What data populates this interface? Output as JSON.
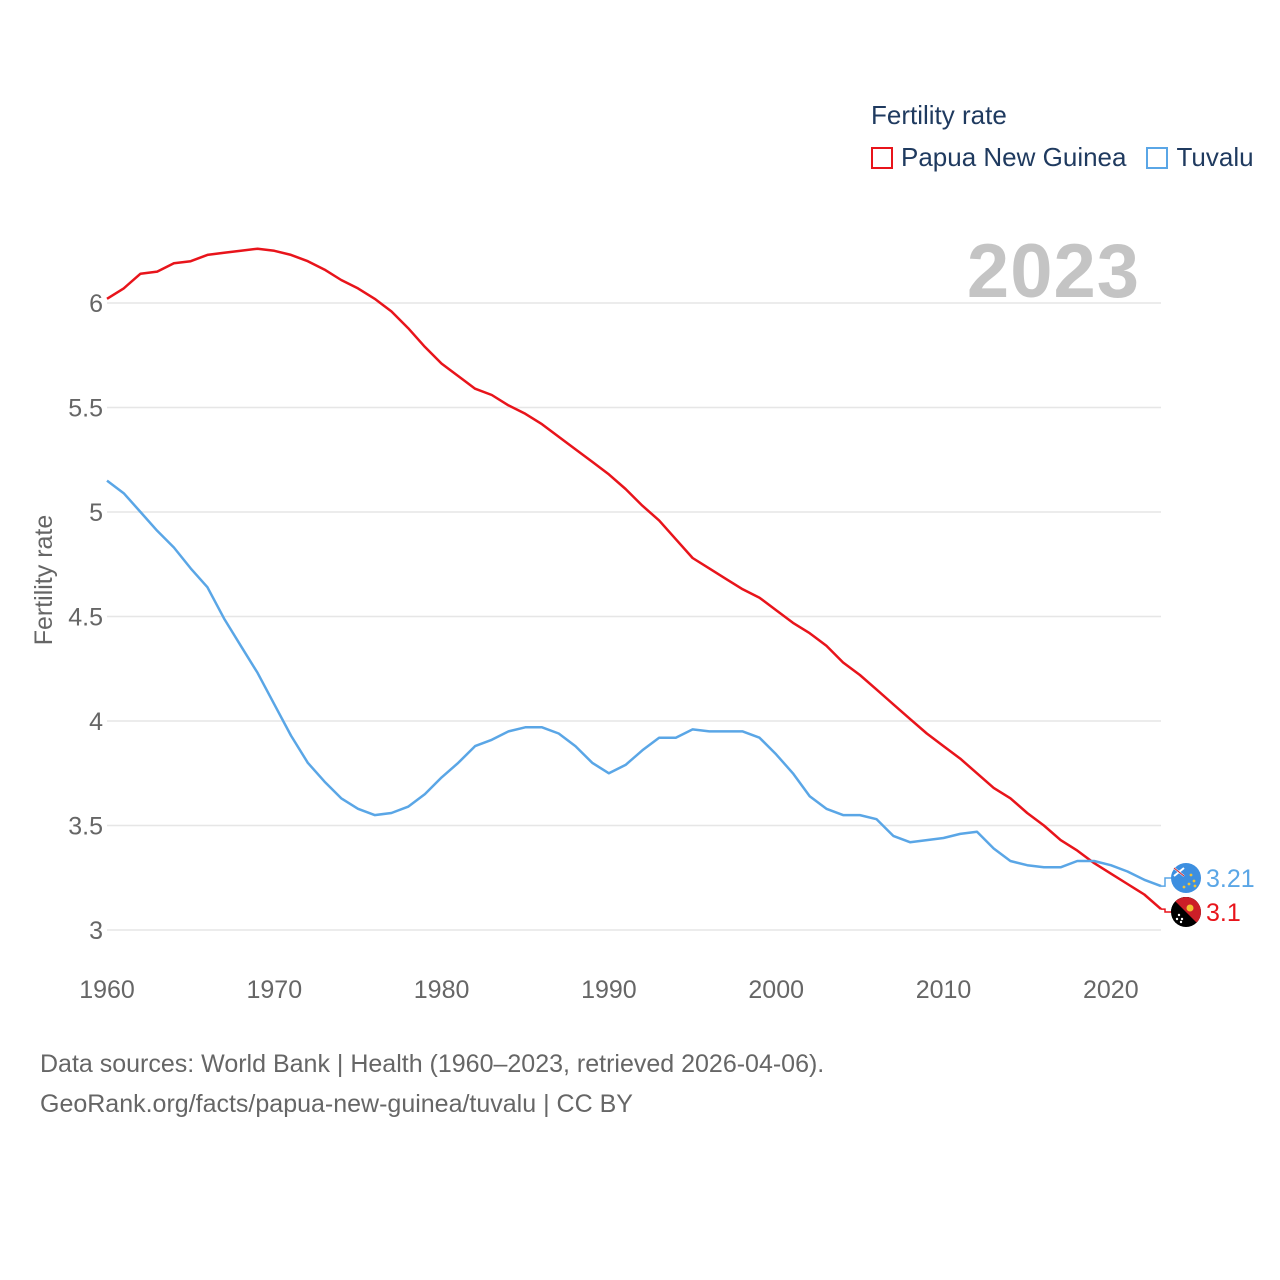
{
  "legend": {
    "title": "Fertility rate",
    "items": [
      {
        "name": "Papua New Guinea",
        "color": "#e8141b"
      },
      {
        "name": "Tuvalu",
        "color": "#5aa6e6"
      }
    ]
  },
  "year_label": "2023",
  "footer": {
    "line1": "Data sources: World Bank | Health (1960–2023, retrieved 2026-04-06).",
    "line2": "GeoRank.org/facts/papua-new-guinea/tuvalu | CC BY"
  },
  "chart_data": {
    "type": "line",
    "title": "Fertility rate",
    "xlabel": "",
    "ylabel": "Fertility rate",
    "xlim": [
      1960,
      2023
    ],
    "ylim": [
      3,
      6.2
    ],
    "x_ticks": [
      1960,
      1970,
      1980,
      1990,
      2000,
      2010,
      2020
    ],
    "y_ticks": [
      3,
      3.5,
      4,
      4.5,
      5,
      5.5,
      6
    ],
    "grid": true,
    "x": [
      1960,
      1961,
      1962,
      1963,
      1964,
      1965,
      1966,
      1967,
      1968,
      1969,
      1970,
      1971,
      1972,
      1973,
      1974,
      1975,
      1976,
      1977,
      1978,
      1979,
      1980,
      1981,
      1982,
      1983,
      1984,
      1985,
      1986,
      1987,
      1988,
      1989,
      1990,
      1991,
      1992,
      1993,
      1994,
      1995,
      1996,
      1997,
      1998,
      1999,
      2000,
      2001,
      2002,
      2003,
      2004,
      2005,
      2006,
      2007,
      2008,
      2009,
      2010,
      2011,
      2012,
      2013,
      2014,
      2015,
      2016,
      2017,
      2018,
      2019,
      2020,
      2021,
      2022,
      2023
    ],
    "series": [
      {
        "name": "Papua New Guinea",
        "color": "#e8141b",
        "end_label": "3.1",
        "values": [
          6.02,
          6.07,
          6.14,
          6.15,
          6.19,
          6.2,
          6.23,
          6.24,
          6.25,
          6.26,
          6.25,
          6.23,
          6.2,
          6.16,
          6.11,
          6.07,
          6.02,
          5.96,
          5.88,
          5.79,
          5.71,
          5.65,
          5.59,
          5.56,
          5.51,
          5.47,
          5.42,
          5.36,
          5.3,
          5.24,
          5.18,
          5.11,
          5.03,
          4.96,
          4.87,
          4.78,
          4.73,
          4.68,
          4.63,
          4.59,
          4.53,
          4.47,
          4.42,
          4.36,
          4.28,
          4.22,
          4.15,
          4.08,
          4.01,
          3.94,
          3.88,
          3.82,
          3.75,
          3.68,
          3.63,
          3.56,
          3.5,
          3.43,
          3.38,
          3.32,
          3.27,
          3.22,
          3.17,
          3.1
        ]
      },
      {
        "name": "Tuvalu",
        "color": "#5aa6e6",
        "end_label": "3.21",
        "values": [
          5.15,
          5.09,
          5.0,
          4.91,
          4.83,
          4.73,
          4.64,
          4.49,
          4.36,
          4.23,
          4.08,
          3.93,
          3.8,
          3.71,
          3.63,
          3.58,
          3.55,
          3.56,
          3.59,
          3.65,
          3.73,
          3.8,
          3.88,
          3.91,
          3.95,
          3.97,
          3.97,
          3.94,
          3.88,
          3.8,
          3.75,
          3.79,
          3.86,
          3.92,
          3.92,
          3.96,
          3.95,
          3.95,
          3.95,
          3.92,
          3.84,
          3.75,
          3.64,
          3.58,
          3.55,
          3.55,
          3.53,
          3.45,
          3.42,
          3.43,
          3.44,
          3.46,
          3.47,
          3.39,
          3.33,
          3.31,
          3.3,
          3.3,
          3.33,
          3.33,
          3.31,
          3.28,
          3.24,
          3.21
        ]
      }
    ]
  }
}
